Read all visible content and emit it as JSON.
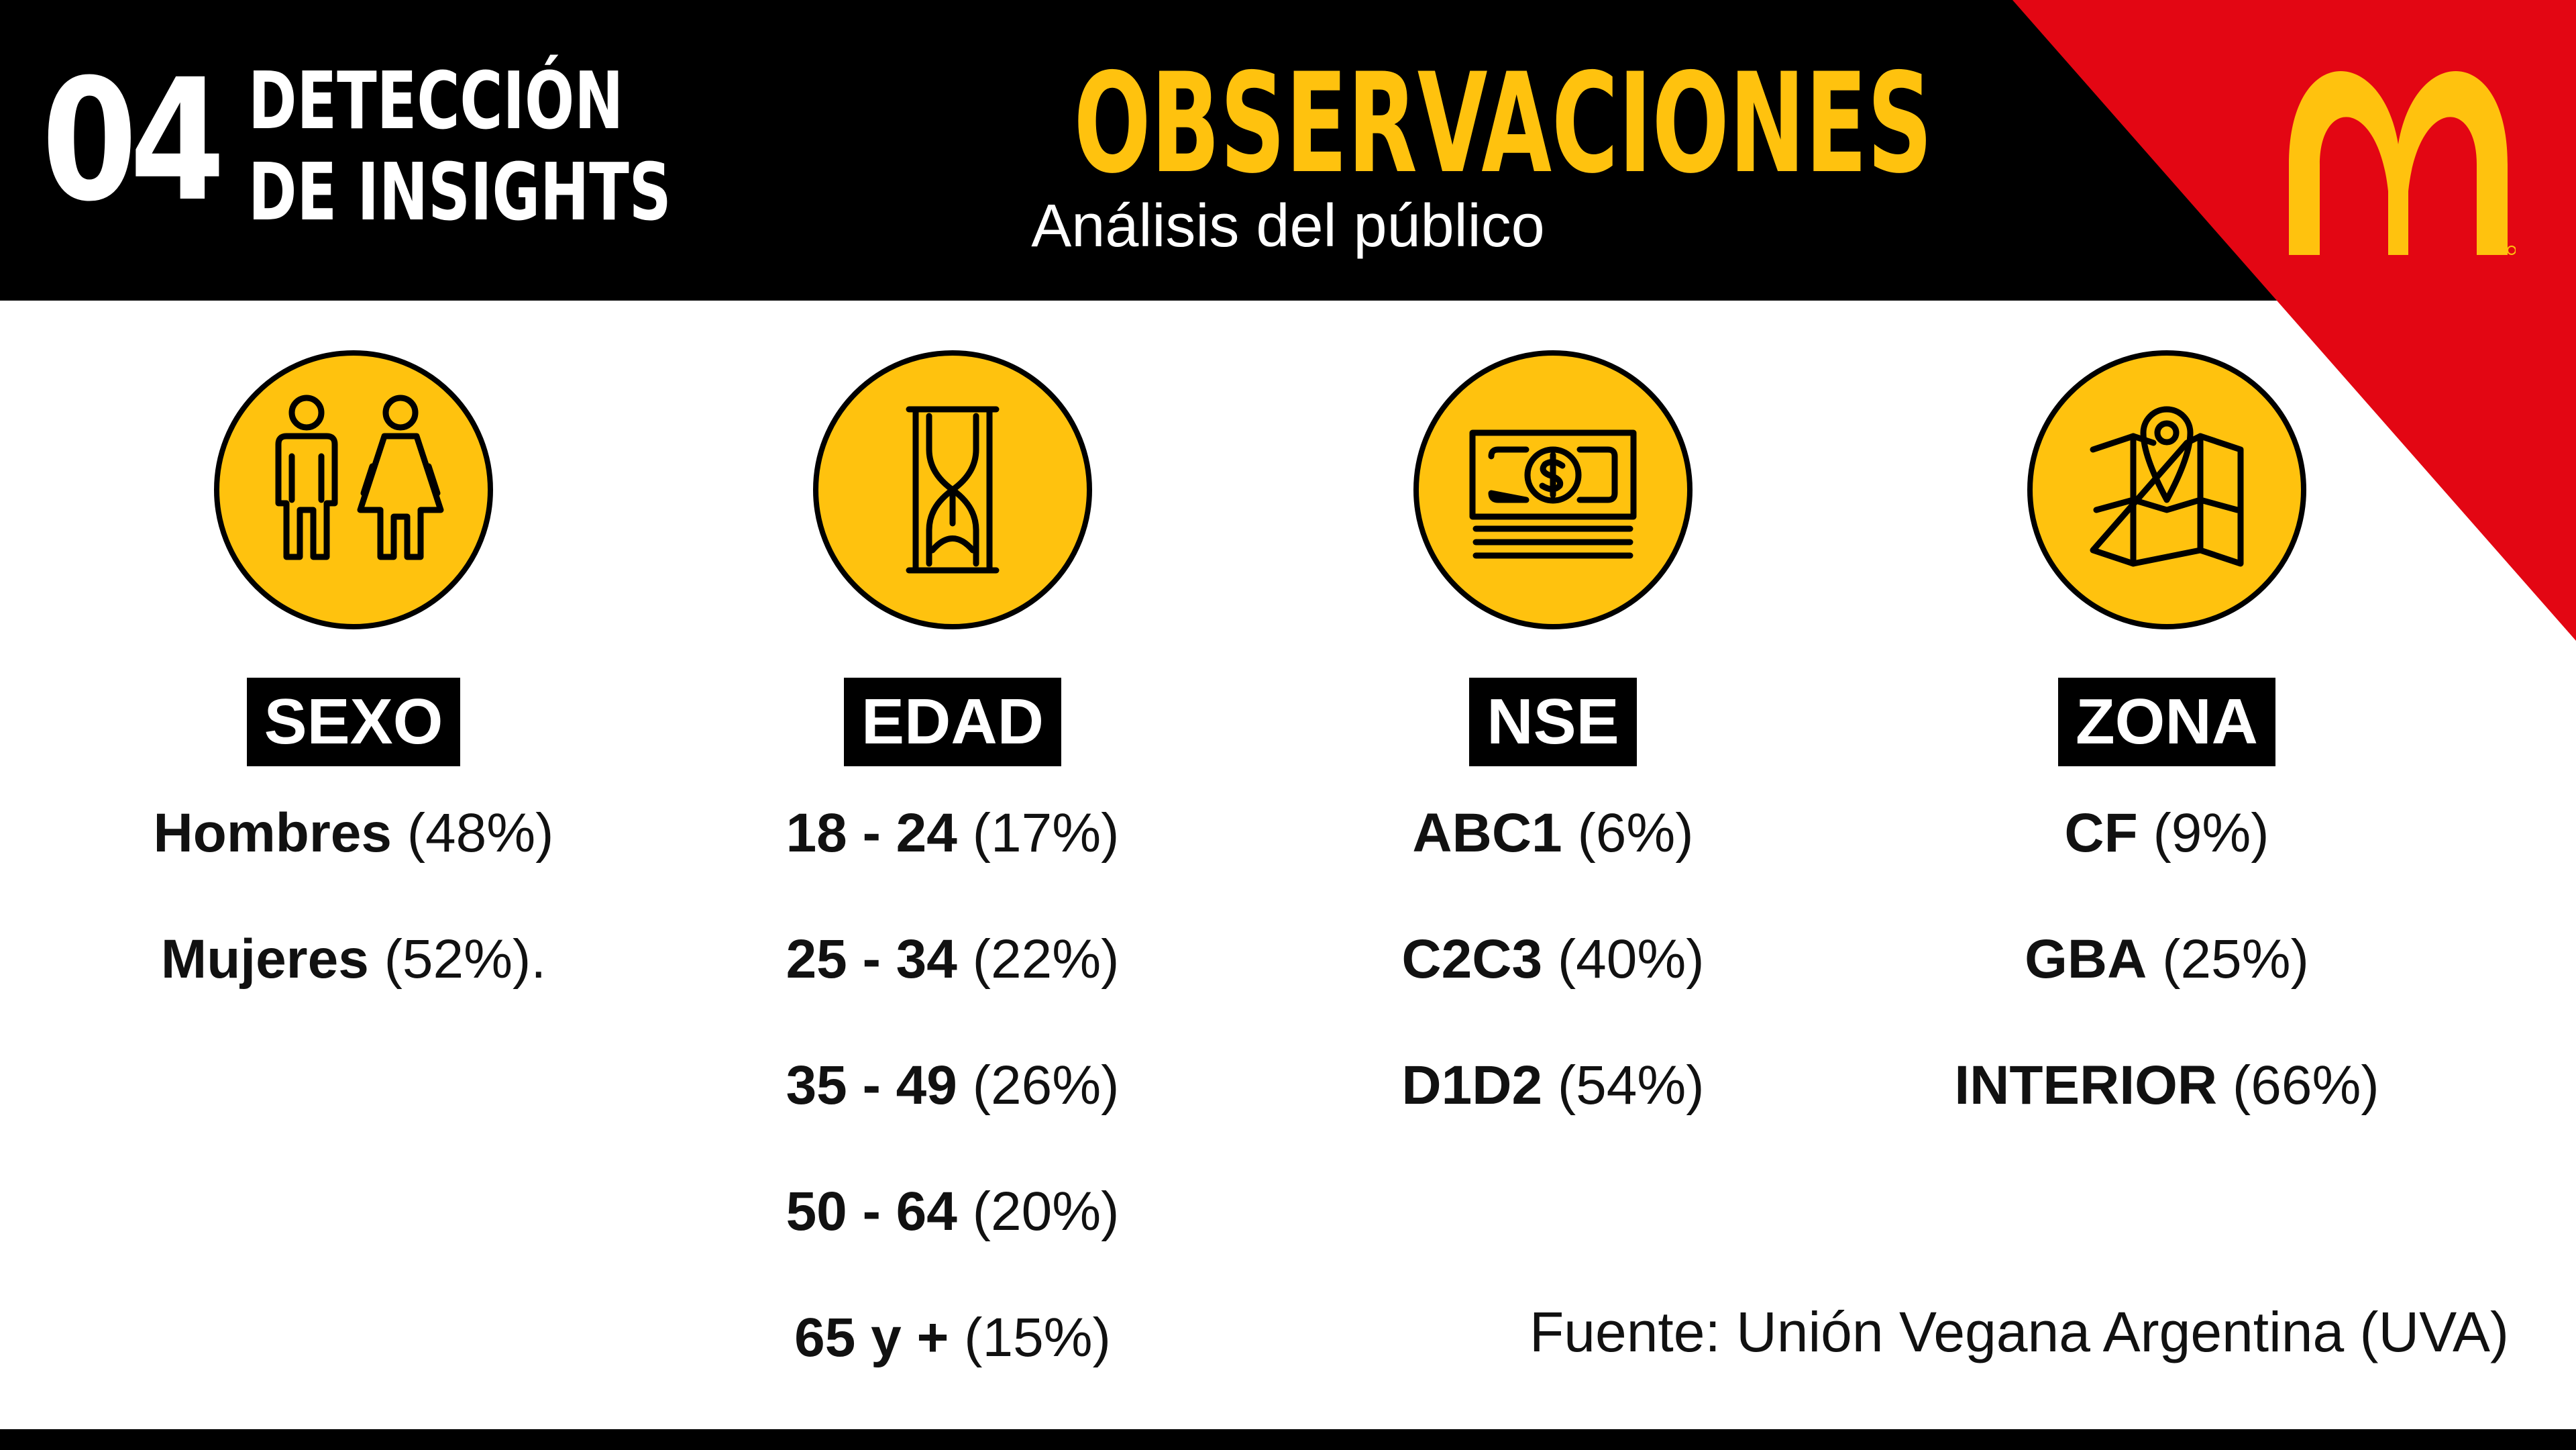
{
  "header": {
    "section_number": "04",
    "section_name_line1": "DETECCIÓN",
    "section_name_line2": "DE INSIGHTS",
    "title": "OBSERVACIONES",
    "subtitle": "Análisis del público"
  },
  "brand": {
    "logo_icon": "golden-arches-logo",
    "logo_color": "#ffc20e",
    "accent_red": "#e30613",
    "accent_yellow": "#ffc20e"
  },
  "categories": [
    {
      "icon": "people-icon",
      "label": "SEXO",
      "items": [
        {
          "name": "Hombres",
          "value": "(48%)"
        },
        {
          "name": "Mujeres",
          "value": "(52%)."
        }
      ]
    },
    {
      "icon": "hourglass-icon",
      "label": "EDAD",
      "items": [
        {
          "name": "18 - 24",
          "value": "(17%)"
        },
        {
          "name": "25 - 34",
          "value": "(22%)"
        },
        {
          "name": "35 - 49",
          "value": "(26%)"
        },
        {
          "name": "50 - 64",
          "value": "(20%)"
        },
        {
          "name": "65 y +",
          "value": "(15%)"
        }
      ]
    },
    {
      "icon": "money-icon",
      "label": "NSE",
      "items": [
        {
          "name": "ABC1",
          "value": "(6%)"
        },
        {
          "name": "C2C3",
          "value": "(40%)"
        },
        {
          "name": "D1D2",
          "value": "(54%)"
        }
      ]
    },
    {
      "icon": "map-pin-icon",
      "label": "ZONA",
      "items": [
        {
          "name": "CF",
          "value": "(9%)"
        },
        {
          "name": "GBA",
          "value": "(25%)"
        },
        {
          "name": "INTERIOR",
          "value": "(66%)"
        }
      ]
    }
  ],
  "source": "Fuente: Unión Vegana Argentina (UVA)"
}
